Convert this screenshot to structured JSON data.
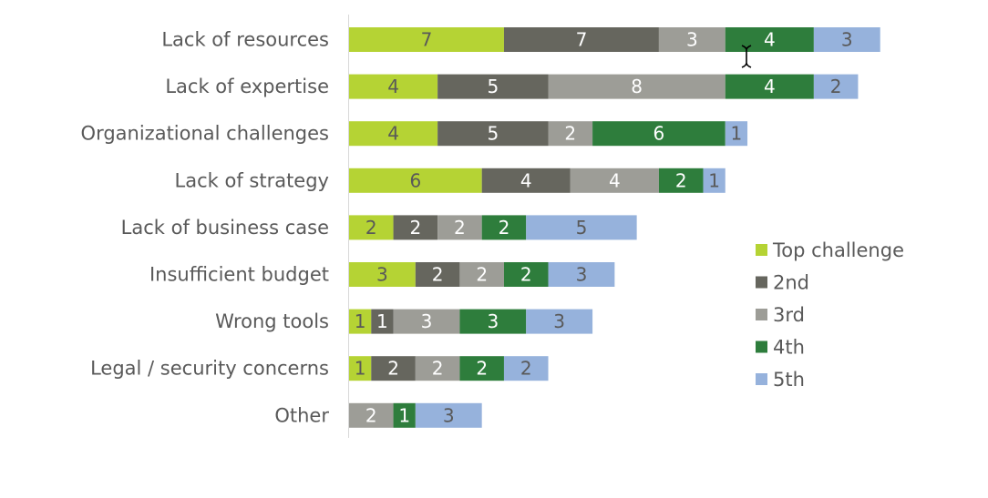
{
  "chart_data": {
    "type": "bar",
    "orientation": "horizontal",
    "stacked": true,
    "grid": false,
    "legend_position": "right",
    "categories": [
      "Lack of resources",
      "Lack of expertise",
      "Organizational challenges",
      "Lack of strategy",
      "Lack of business case",
      "Insufficient budget",
      "Wrong tools",
      "Legal / security concerns",
      "Other"
    ],
    "series": [
      {
        "name": "Top challenge",
        "color": "#b5d334",
        "label_color": "#595959",
        "values": [
          7,
          4,
          4,
          6,
          2,
          3,
          1,
          1,
          0
        ]
      },
      {
        "name": "2nd",
        "color": "#66665e",
        "label_color": "#ffffff",
        "values": [
          7,
          5,
          5,
          4,
          2,
          2,
          1,
          2,
          0
        ]
      },
      {
        "name": "3rd",
        "color": "#9d9d97",
        "label_color": "#ffffff",
        "values": [
          3,
          8,
          2,
          4,
          2,
          2,
          3,
          2,
          2
        ]
      },
      {
        "name": "4th",
        "color": "#2e7d3c",
        "label_color": "#ffffff",
        "values": [
          4,
          4,
          6,
          2,
          2,
          2,
          3,
          2,
          1
        ]
      },
      {
        "name": "5th",
        "color": "#96b2dc",
        "label_color": "#595959",
        "values": [
          3,
          2,
          1,
          1,
          5,
          3,
          3,
          2,
          3
        ]
      }
    ],
    "title": "",
    "xlabel": "",
    "ylabel": ""
  }
}
